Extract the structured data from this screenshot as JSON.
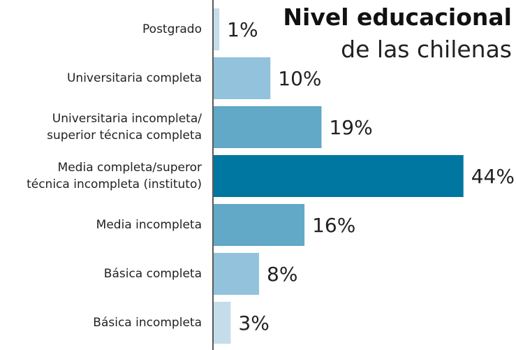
{
  "chart_data": {
    "type": "bar",
    "orientation": "horizontal",
    "title": "Nivel educacional",
    "subtitle": "de las chilenas",
    "categories": [
      "Postgrado",
      "Universitaria completa",
      "Universitaria incompleta/\nsuperior técnica completa",
      "Media completa/superor\ntécnica incompleta (instituto)",
      "Media incompleta",
      "Básica completa",
      "Básica incompleta"
    ],
    "values": [
      1,
      10,
      19,
      44,
      16,
      8,
      3
    ],
    "value_labels": [
      "1%",
      "10%",
      "19%",
      "44%",
      "16%",
      "8%",
      "3%"
    ],
    "colors": [
      "#c5dcea",
      "#93c3dc",
      "#62a8c7",
      "#0077a0",
      "#62a8c7",
      "#93c3dc",
      "#c5dcea"
    ]
  }
}
